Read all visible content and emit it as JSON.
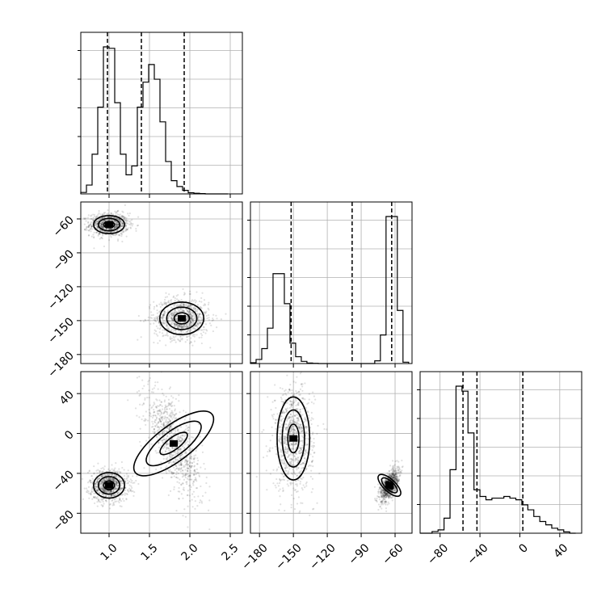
{
  "chart_data": {
    "type": "corner",
    "title": "",
    "parameters": [
      "",
      "",
      ""
    ],
    "axes": [
      {
        "range": [
          0.65,
          2.65
        ],
        "ticks": [
          1.0,
          1.5,
          2.0,
          2.5
        ],
        "tick_labels": [
          "1.0",
          "1.5",
          "2.0",
          "2.5"
        ]
      },
      {
        "range": [
          -188,
          -45
        ],
        "ticks": [
          -180,
          -150,
          -120,
          -90,
          -60
        ],
        "tick_labels": [
          "−180",
          "−150",
          "−120",
          "−90",
          "−60"
        ]
      },
      {
        "range": [
          -100,
          62
        ],
        "ticks": [
          -80,
          -40,
          0,
          40
        ],
        "tick_labels": [
          "−80",
          "−40",
          "0",
          "40"
        ]
      }
    ],
    "histograms": [
      {
        "parameter_index": 0,
        "bin_edges": [
          0.65,
          0.72,
          0.79,
          0.86,
          0.93,
          1.0,
          1.07,
          1.14,
          1.21,
          1.28,
          1.35,
          1.42,
          1.49,
          1.56,
          1.63,
          1.7,
          1.77,
          1.84,
          1.91,
          1.98,
          2.05,
          2.12,
          2.19,
          2.26,
          2.33,
          2.4,
          2.47
        ],
        "counts": [
          5,
          30,
          135,
          295,
          500,
          495,
          310,
          135,
          65,
          95,
          295,
          380,
          440,
          390,
          245,
          110,
          45,
          25,
          12,
          4,
          2,
          1,
          0,
          0,
          0,
          0
        ],
        "quantiles": [
          0.98,
          1.4,
          1.93
        ]
      },
      {
        "parameter_index": 1,
        "bin_edges": [
          -188,
          -183,
          -178,
          -173,
          -168,
          -163,
          -158,
          -153,
          -148,
          -143,
          -138,
          -133,
          -128,
          -123,
          -118,
          -113,
          -108,
          -103,
          -98,
          -93,
          -88,
          -83,
          -78,
          -73,
          -68,
          -63,
          -58,
          -53,
          -48
        ],
        "counts": [
          3,
          15,
          55,
          130,
          330,
          330,
          220,
          75,
          25,
          8,
          2,
          1,
          0,
          0,
          0,
          0,
          0,
          0,
          0,
          0,
          0,
          0,
          10,
          105,
          540,
          540,
          195,
          5
        ],
        "quantiles": [
          -152,
          -98,
          -63
        ]
      },
      {
        "parameter_index": 2,
        "bin_edges": [
          -100,
          -94,
          -88,
          -82,
          -76,
          -70,
          -64,
          -58,
          -52,
          -46,
          -40,
          -34,
          -28,
          -22,
          -16,
          -10,
          -4,
          2,
          8,
          14,
          20,
          26,
          32,
          38,
          44,
          50,
          56
        ],
        "counts": [
          0,
          0,
          5,
          10,
          45,
          190,
          440,
          425,
          300,
          130,
          110,
          100,
          105,
          105,
          110,
          105,
          100,
          85,
          70,
          50,
          35,
          25,
          15,
          10,
          4,
          0
        ],
        "quantiles": [
          -57,
          -43,
          3
        ]
      }
    ],
    "scatter_panels": [
      {
        "x_param": 0,
        "y_param": 1,
        "clusters": [
          {
            "name": "",
            "center": [
              1.0,
              -65
            ],
            "spread": [
              0.12,
              5
            ]
          },
          {
            "name": "",
            "center": [
              1.9,
              -148
            ],
            "spread": [
              0.17,
              9
            ]
          }
        ]
      },
      {
        "x_param": 0,
        "y_param": 2,
        "clusters": [
          {
            "name": "",
            "center": [
              1.0,
              -52
            ],
            "spread": [
              0.12,
              8
            ]
          },
          {
            "name": "",
            "center": [
              1.8,
              -10
            ],
            "spread": [
              0.17,
              26
            ],
            "correlation": -0.7
          }
        ]
      },
      {
        "x_param": 1,
        "y_param": 2,
        "clusters": [
          {
            "name": "",
            "center": [
              -150,
              -5
            ],
            "spread": [
              9,
              26
            ]
          },
          {
            "name": "",
            "center": [
              -65,
              -52
            ],
            "spread": [
              4,
              8
            ],
            "correlation": 0.6
          }
        ]
      }
    ],
    "grid": true,
    "legend": "none"
  }
}
